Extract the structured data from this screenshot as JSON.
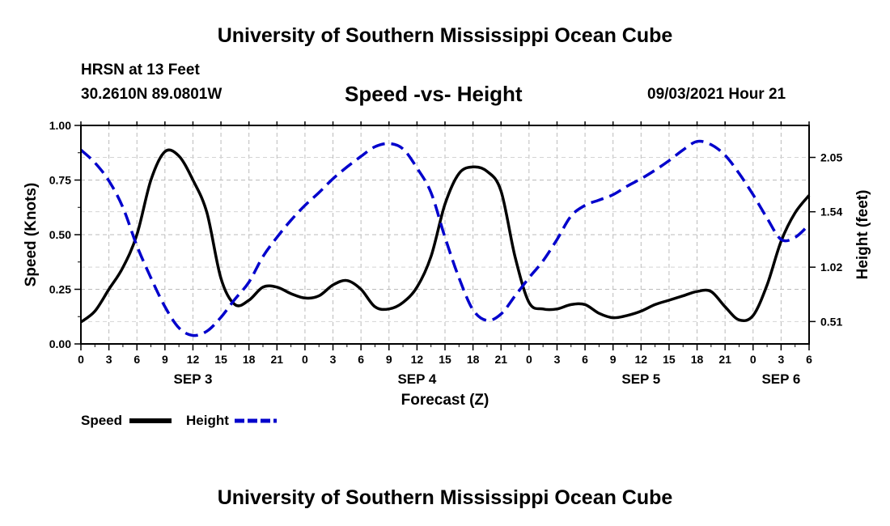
{
  "header": {
    "title_top": "University of Southern Mississippi Ocean Cube",
    "title_bottom": "University of Southern Mississippi Ocean Cube",
    "station": "HRSN at 13 Feet",
    "coords": "30.2610N  89.0801W",
    "timestamp": "09/03/2021 Hour 21"
  },
  "chart_data": {
    "type": "line",
    "title": "Speed -vs- Height",
    "xlabel": "Forecast (Z)",
    "ylabel": "Speed (Knots)",
    "y2label": "Height (feet)",
    "xlim": [
      0,
      78
    ],
    "ylim": [
      0,
      1.0
    ],
    "y2lim": [
      0.3,
      2.35
    ],
    "grid": true,
    "x_ticks": [
      0,
      3,
      6,
      9,
      12,
      15,
      18,
      21,
      24,
      27,
      30,
      33,
      36,
      39,
      42,
      45,
      48,
      51,
      54,
      57,
      60,
      63,
      66,
      69,
      72,
      75,
      78
    ],
    "x_tick_labels": [
      "0",
      "3",
      "6",
      "9",
      "12",
      "15",
      "18",
      "21",
      "0",
      "3",
      "6",
      "9",
      "12",
      "15",
      "18",
      "21",
      "0",
      "3",
      "6",
      "9",
      "12",
      "15",
      "18",
      "21",
      "0",
      "3",
      "6"
    ],
    "y_ticks": [
      0,
      0.25,
      0.5,
      0.75,
      1.0
    ],
    "y_tick_labels": [
      "0.00",
      "0.25",
      "0.50",
      "0.75",
      "1.00"
    ],
    "y2_ticks": [
      0.51,
      1.02,
      1.54,
      2.05
    ],
    "y2_tick_labels": [
      "0.51",
      "1.02",
      "1.54",
      "2.05"
    ],
    "date_labels": [
      {
        "label": "SEP 3",
        "x": 12
      },
      {
        "label": "SEP 4",
        "x": 36
      },
      {
        "label": "SEP 5",
        "x": 60
      },
      {
        "label": "SEP 6",
        "x": 75
      }
    ],
    "series": [
      {
        "name": "Speed",
        "axis": "left",
        "color": "#000000",
        "style": "solid",
        "points": [
          [
            0,
            0.1
          ],
          [
            1.5,
            0.15
          ],
          [
            3,
            0.25
          ],
          [
            4.5,
            0.35
          ],
          [
            6,
            0.5
          ],
          [
            7.5,
            0.75
          ],
          [
            9,
            0.88
          ],
          [
            10.5,
            0.86
          ],
          [
            12,
            0.75
          ],
          [
            13.5,
            0.6
          ],
          [
            15,
            0.3
          ],
          [
            16.5,
            0.18
          ],
          [
            18,
            0.2
          ],
          [
            19.5,
            0.26
          ],
          [
            21,
            0.26
          ],
          [
            22.5,
            0.23
          ],
          [
            24,
            0.21
          ],
          [
            25.5,
            0.22
          ],
          [
            27,
            0.27
          ],
          [
            28.5,
            0.29
          ],
          [
            30,
            0.25
          ],
          [
            31.5,
            0.17
          ],
          [
            33,
            0.16
          ],
          [
            34.5,
            0.19
          ],
          [
            36,
            0.26
          ],
          [
            37.5,
            0.4
          ],
          [
            39,
            0.64
          ],
          [
            40.5,
            0.78
          ],
          [
            42,
            0.81
          ],
          [
            43.5,
            0.79
          ],
          [
            45,
            0.7
          ],
          [
            46.5,
            0.4
          ],
          [
            48,
            0.19
          ],
          [
            49.5,
            0.16
          ],
          [
            51,
            0.16
          ],
          [
            52.5,
            0.18
          ],
          [
            54,
            0.18
          ],
          [
            55.5,
            0.14
          ],
          [
            57,
            0.12
          ],
          [
            58.5,
            0.13
          ],
          [
            60,
            0.15
          ],
          [
            61.5,
            0.18
          ],
          [
            63,
            0.2
          ],
          [
            64.5,
            0.22
          ],
          [
            66,
            0.24
          ],
          [
            67.5,
            0.24
          ],
          [
            69,
            0.17
          ],
          [
            70.5,
            0.11
          ],
          [
            72,
            0.13
          ],
          [
            73.5,
            0.27
          ],
          [
            75,
            0.47
          ],
          [
            76.5,
            0.6
          ],
          [
            78,
            0.68
          ]
        ]
      },
      {
        "name": "Height",
        "axis": "right",
        "color": "#0000cc",
        "style": "dashed",
        "points": [
          [
            0,
            2.12
          ],
          [
            1.5,
            2.0
          ],
          [
            3,
            1.83
          ],
          [
            4.5,
            1.58
          ],
          [
            6,
            1.22
          ],
          [
            7.5,
            0.92
          ],
          [
            9,
            0.65
          ],
          [
            10.5,
            0.45
          ],
          [
            12,
            0.38
          ],
          [
            13.5,
            0.42
          ],
          [
            15,
            0.55
          ],
          [
            16.5,
            0.72
          ],
          [
            18,
            0.88
          ],
          [
            19.5,
            1.12
          ],
          [
            21,
            1.3
          ],
          [
            22.5,
            1.46
          ],
          [
            24,
            1.6
          ],
          [
            25.5,
            1.72
          ],
          [
            27,
            1.85
          ],
          [
            28.5,
            1.96
          ],
          [
            30,
            2.06
          ],
          [
            31.5,
            2.15
          ],
          [
            33,
            2.18
          ],
          [
            34.5,
            2.13
          ],
          [
            36,
            1.95
          ],
          [
            37.5,
            1.72
          ],
          [
            39,
            1.3
          ],
          [
            40.5,
            0.92
          ],
          [
            42,
            0.62
          ],
          [
            43.5,
            0.52
          ],
          [
            45,
            0.58
          ],
          [
            46.5,
            0.75
          ],
          [
            48,
            0.92
          ],
          [
            49.5,
            1.08
          ],
          [
            51,
            1.28
          ],
          [
            52.5,
            1.5
          ],
          [
            54,
            1.6
          ],
          [
            55.5,
            1.65
          ],
          [
            57,
            1.7
          ],
          [
            58.5,
            1.78
          ],
          [
            60,
            1.85
          ],
          [
            61.5,
            1.93
          ],
          [
            63,
            2.02
          ],
          [
            64.5,
            2.12
          ],
          [
            66,
            2.2
          ],
          [
            67.5,
            2.17
          ],
          [
            69,
            2.07
          ],
          [
            70.5,
            1.9
          ],
          [
            72,
            1.7
          ],
          [
            73.5,
            1.48
          ],
          [
            75,
            1.28
          ],
          [
            76.5,
            1.3
          ],
          [
            78,
            1.42
          ]
        ]
      }
    ],
    "legend": {
      "placement": "bottom-left",
      "entries": [
        {
          "label": "Speed",
          "color": "#000000",
          "style": "solid"
        },
        {
          "label": "Height",
          "color": "#0000cc",
          "style": "dashed"
        }
      ]
    }
  }
}
